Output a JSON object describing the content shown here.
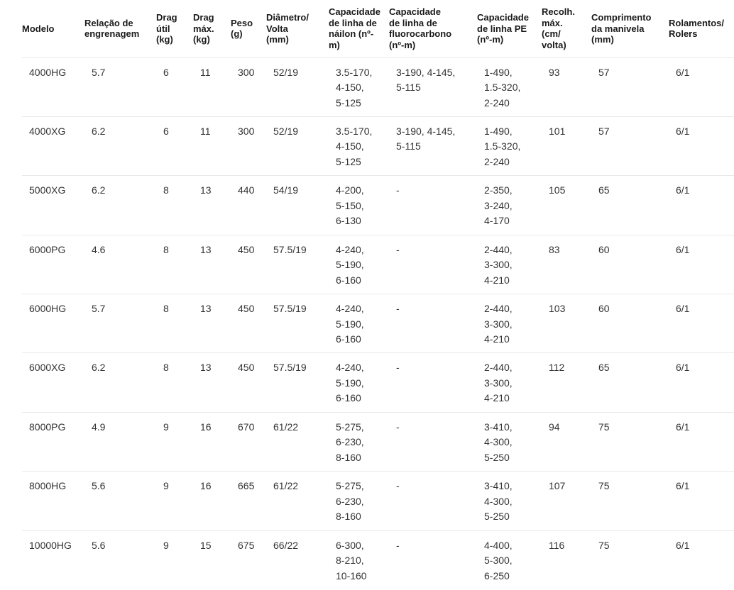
{
  "colors": {
    "header_text": "#1a1a1a",
    "body_text": "#333333",
    "divider": "#e9e9e9",
    "background": "#ffffff"
  },
  "table": {
    "columns": [
      {
        "id": "modelo",
        "label": "Modelo"
      },
      {
        "id": "gear_ratio",
        "label": "Relação de\nengrenagem"
      },
      {
        "id": "drag_util",
        "label": "Drag\nútil\n(kg)"
      },
      {
        "id": "drag_max",
        "label": "Drag\nmáx.\n(kg)"
      },
      {
        "id": "peso",
        "label": "Peso\n(g)"
      },
      {
        "id": "diametro_volta",
        "label": "Diâmetro/\nVolta\n(mm)"
      },
      {
        "id": "cap_nailon",
        "label": "Capacidade\nde linha de\nnáilon (nº-\nm)"
      },
      {
        "id": "cap_fluorocarbono",
        "label": "Capacidade\nde linha de\nfluorocarbono\n(nº-m)"
      },
      {
        "id": "cap_pe",
        "label": "Capacidade\nde linha PE\n(nº-m)"
      },
      {
        "id": "recolhimento_max",
        "label": "Recolh.\nmáx.\n(cm/\nvolta)"
      },
      {
        "id": "comp_manivela",
        "label": "Comprimento\nda manivela\n(mm)"
      },
      {
        "id": "rolamentos",
        "label": "Rolamentos/\nRolers"
      }
    ],
    "rows": [
      {
        "modelo": "4000HG",
        "gear_ratio": "5.7",
        "drag_util": "6",
        "drag_max": "11",
        "peso": "300",
        "diametro_volta": "52/19",
        "cap_nailon": "3.5-170,\n4-150,\n5-125",
        "cap_fluorocarbono": "3-190, 4-145,\n5-115",
        "cap_pe": "1-490,\n1.5-320,\n2-240",
        "recolhimento_max": "93",
        "comp_manivela": "57",
        "rolamentos": "6/1"
      },
      {
        "modelo": "4000XG",
        "gear_ratio": "6.2",
        "drag_util": "6",
        "drag_max": "11",
        "peso": "300",
        "diametro_volta": "52/19",
        "cap_nailon": "3.5-170,\n4-150,\n5-125",
        "cap_fluorocarbono": "3-190, 4-145,\n5-115",
        "cap_pe": "1-490,\n1.5-320,\n2-240",
        "recolhimento_max": "101",
        "comp_manivela": "57",
        "rolamentos": "6/1"
      },
      {
        "modelo": "5000XG",
        "gear_ratio": "6.2",
        "drag_util": "8",
        "drag_max": "13",
        "peso": "440",
        "diametro_volta": "54/19",
        "cap_nailon": "4-200,\n5-150,\n6-130",
        "cap_fluorocarbono": "-",
        "cap_pe": "2-350,\n3-240,\n4-170",
        "recolhimento_max": "105",
        "comp_manivela": "65",
        "rolamentos": "6/1"
      },
      {
        "modelo": "6000PG",
        "gear_ratio": "4.6",
        "drag_util": "8",
        "drag_max": "13",
        "peso": "450",
        "diametro_volta": "57.5/19",
        "cap_nailon": "4-240,\n5-190,\n6-160",
        "cap_fluorocarbono": "-",
        "cap_pe": "2-440,\n3-300,\n4-210",
        "recolhimento_max": "83",
        "comp_manivela": "60",
        "rolamentos": "6/1"
      },
      {
        "modelo": "6000HG",
        "gear_ratio": "5.7",
        "drag_util": "8",
        "drag_max": "13",
        "peso": "450",
        "diametro_volta": "57.5/19",
        "cap_nailon": "4-240,\n5-190,\n6-160",
        "cap_fluorocarbono": "-",
        "cap_pe": "2-440,\n3-300,\n4-210",
        "recolhimento_max": "103",
        "comp_manivela": "60",
        "rolamentos": "6/1"
      },
      {
        "modelo": "6000XG",
        "gear_ratio": "6.2",
        "drag_util": "8",
        "drag_max": "13",
        "peso": "450",
        "diametro_volta": "57.5/19",
        "cap_nailon": "4-240,\n5-190,\n6-160",
        "cap_fluorocarbono": "-",
        "cap_pe": "2-440,\n3-300,\n4-210",
        "recolhimento_max": "112",
        "comp_manivela": "65",
        "rolamentos": "6/1"
      },
      {
        "modelo": "8000PG",
        "gear_ratio": "4.9",
        "drag_util": "9",
        "drag_max": "16",
        "peso": "670",
        "diametro_volta": "61/22",
        "cap_nailon": "5-275,\n6-230,\n8-160",
        "cap_fluorocarbono": "-",
        "cap_pe": "3-410,\n4-300,\n5-250",
        "recolhimento_max": "94",
        "comp_manivela": "75",
        "rolamentos": "6/1"
      },
      {
        "modelo": "8000HG",
        "gear_ratio": "5.6",
        "drag_util": "9",
        "drag_max": "16",
        "peso": "665",
        "diametro_volta": "61/22",
        "cap_nailon": "5-275,\n6-230,\n8-160",
        "cap_fluorocarbono": "-",
        "cap_pe": "3-410,\n4-300,\n5-250",
        "recolhimento_max": "107",
        "comp_manivela": "75",
        "rolamentos": "6/1"
      },
      {
        "modelo": "10000HG",
        "gear_ratio": "5.6",
        "drag_util": "9",
        "drag_max": "15",
        "peso": "675",
        "diametro_volta": "66/22",
        "cap_nailon": "6-300,\n8-210,\n10-160",
        "cap_fluorocarbono": "-",
        "cap_pe": "4-400,\n5-300,\n6-250",
        "recolhimento_max": "116",
        "comp_manivela": "75",
        "rolamentos": "6/1"
      }
    ]
  }
}
